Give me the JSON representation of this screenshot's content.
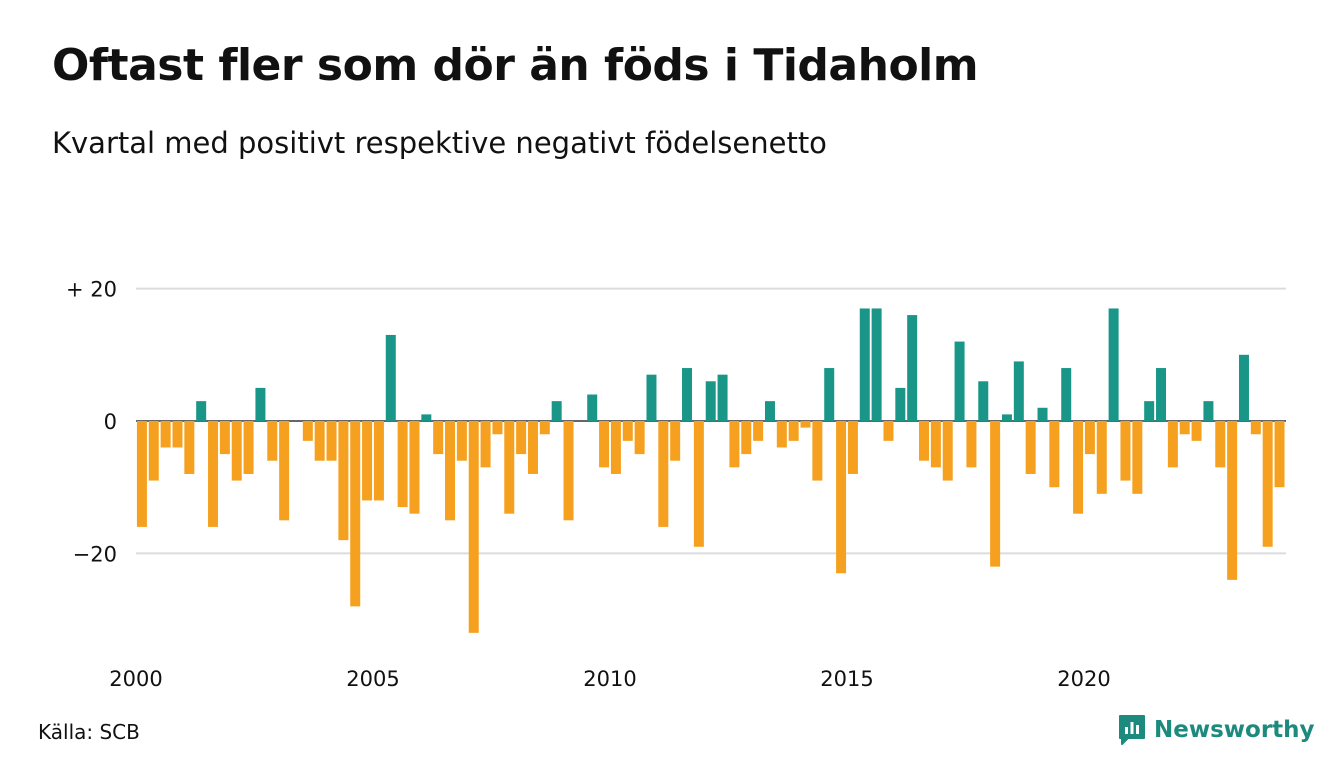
{
  "colors": {
    "positive": "#1a9688",
    "negative": "#f5a11f",
    "grid": "#dcdcdc",
    "brand": "#1d8a7e"
  },
  "source": "Källa: SCB",
  "brand": {
    "name": "Newsworthy",
    "icon": "bar-chart-speech-bubble-icon"
  },
  "chart_data": {
    "type": "bar",
    "title": "Oftast fler som dör än föds i Tidaholm",
    "subtitle": "Kvartal med positivt respektive negativt födelsenetto",
    "xlabel": "",
    "ylabel": "",
    "x_start": "2000 Q1",
    "frequency": "quarterly",
    "ylim": [
      -32,
      20
    ],
    "yticks": [
      {
        "value": 20,
        "label": "+ 20"
      },
      {
        "value": 0,
        "label": "0"
      },
      {
        "value": -20,
        "label": "−20"
      }
    ],
    "xticks": [
      {
        "year": 2000,
        "label": "2000"
      },
      {
        "year": 2005,
        "label": "2005"
      },
      {
        "year": 2010,
        "label": "2010"
      },
      {
        "year": 2015,
        "label": "2015"
      },
      {
        "year": 2020,
        "label": "2020"
      }
    ],
    "grid": true,
    "legend": "none",
    "values": [
      -16,
      -9,
      -4,
      -4,
      -8,
      3,
      -16,
      -5,
      -9,
      -8,
      5,
      -6,
      -15,
      0,
      -3,
      -6,
      -6,
      -18,
      -28,
      -12,
      -12,
      13,
      -13,
      -14,
      1,
      -5,
      -15,
      -6,
      -32,
      -7,
      -2,
      -14,
      -5,
      -8,
      -2,
      3,
      -15,
      0,
      4,
      -7,
      -8,
      -3,
      -5,
      7,
      -16,
      -6,
      8,
      -19,
      6,
      7,
      -7,
      -5,
      -3,
      3,
      -4,
      -3,
      -1,
      -9,
      8,
      -23,
      -8,
      17,
      17,
      -3,
      5,
      16,
      -6,
      -7,
      -9,
      12,
      -7,
      6,
      -22,
      1,
      9,
      -8,
      2,
      -10,
      8,
      -14,
      -5,
      -11,
      17,
      -9,
      -11,
      3,
      8,
      -7,
      -2,
      -3,
      3,
      -7,
      -24,
      10,
      -2,
      -19,
      -10
    ]
  }
}
